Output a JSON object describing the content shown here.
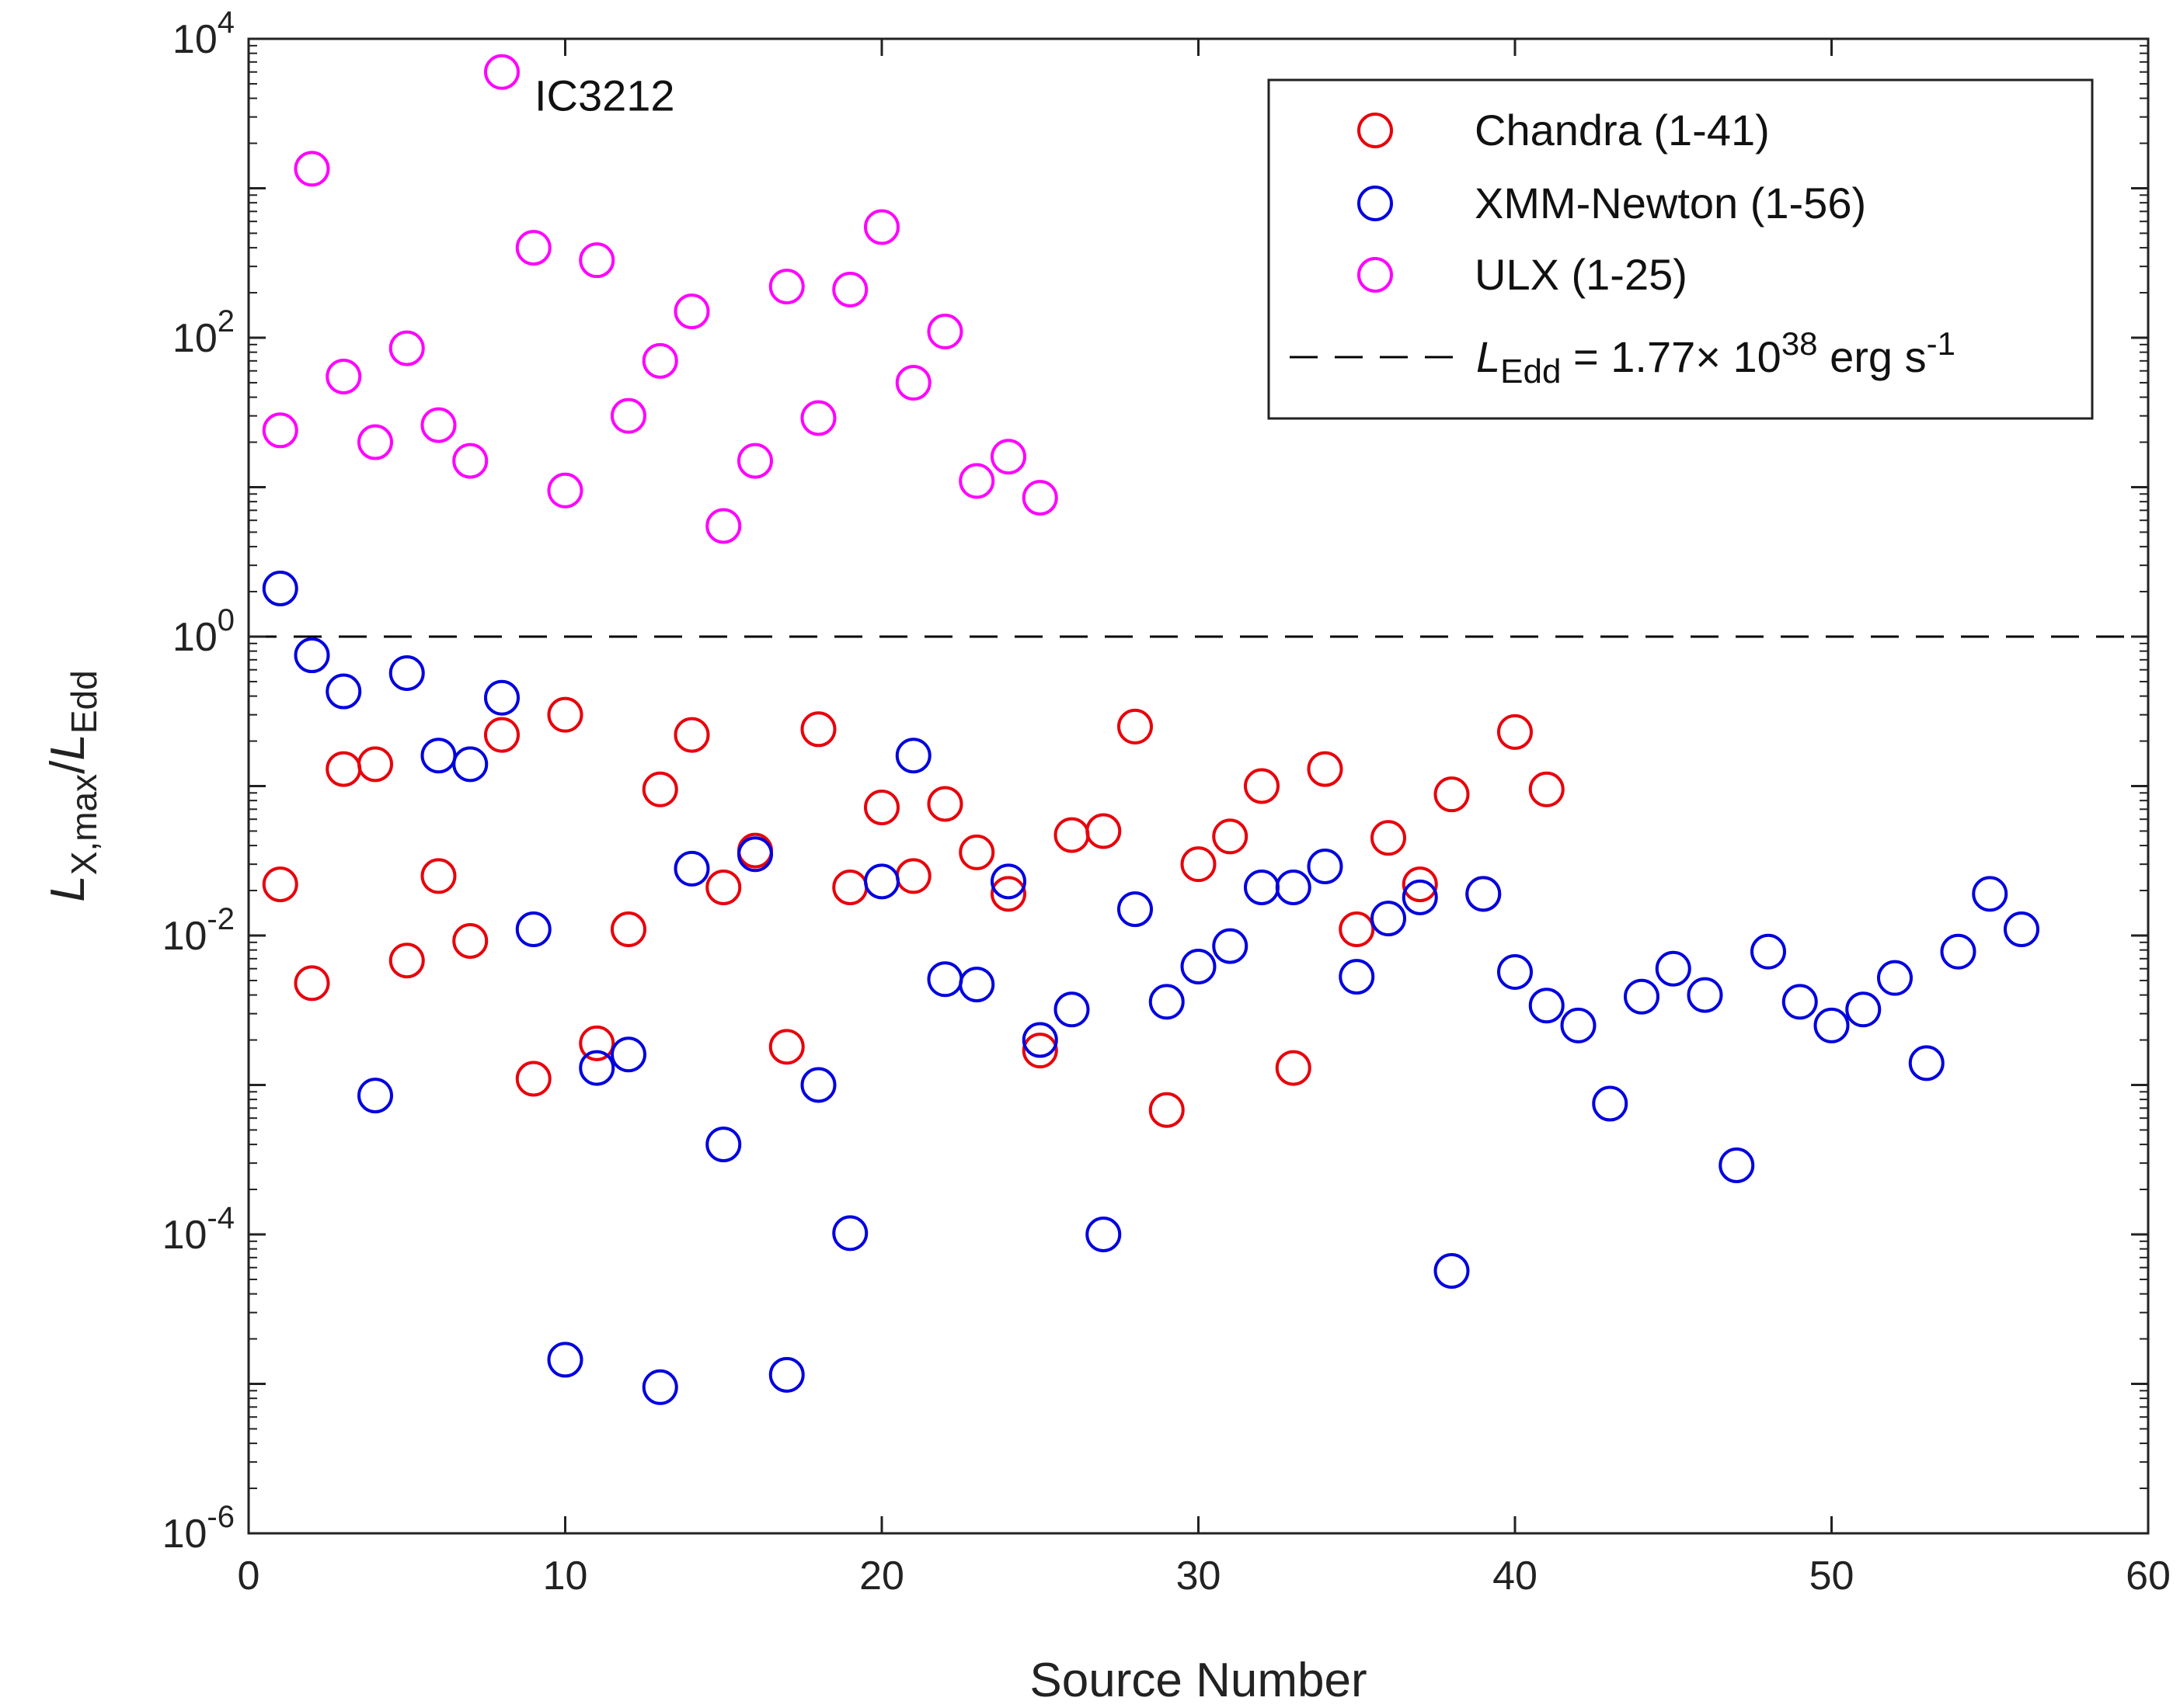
{
  "chart_data": {
    "type": "scatter",
    "xlabel": "Source Number",
    "ylabel": {
      "main": "L",
      "main_sub": "X,max",
      "slash": "/",
      "denom": "L",
      "denom_sub": "Edd"
    },
    "xlim": [
      0,
      60
    ],
    "ylim_log10": [
      -6,
      4
    ],
    "yscale": "log",
    "grid": false,
    "x_ticks": [
      "0",
      "10",
      "20",
      "30",
      "40",
      "50",
      "60"
    ],
    "y_ticks": [
      {
        "base": "10",
        "exp": "4"
      },
      {
        "base": "10",
        "exp": "2"
      },
      {
        "base": "10",
        "exp": "0"
      },
      {
        "base": "10",
        "exp": "-2"
      },
      {
        "base": "10",
        "exp": "-4"
      },
      {
        "base": "10",
        "exp": "-6"
      }
    ],
    "reference_line": {
      "y": 1,
      "style": "dashed",
      "color": "#000000"
    },
    "annotation": {
      "text": "IC3212",
      "x": 8,
      "y": 6000
    },
    "legend": {
      "position": "top-right",
      "entries": [
        {
          "label": "Chandra (1-41)",
          "color": "#e8000b"
        },
        {
          "label": "XMM-Newton (1-56)",
          "color": "#0000e0"
        },
        {
          "label": "ULX (1-25)",
          "color": "#ff00ff"
        },
        {
          "label_prefix": "L",
          "label_sub": "Edd",
          "label_mid": " = 1.77× 10",
          "label_exp": "38",
          "label_unit": " erg s",
          "label_unit_exp": "-1",
          "color": "#000000",
          "style": "dashed"
        }
      ]
    },
    "series": [
      {
        "name": "Chandra (1-41)",
        "color": "#e8000b",
        "x": [
          1,
          2,
          3,
          4,
          5,
          6,
          7,
          8,
          9,
          10,
          11,
          12,
          13,
          14,
          15,
          16,
          17,
          18,
          19,
          20,
          21,
          22,
          23,
          24,
          25,
          26,
          27,
          28,
          29,
          30,
          31,
          32,
          33,
          34,
          35,
          36,
          37,
          38,
          39,
          40,
          41
        ],
        "y": [
          0.022,
          0.0048,
          0.13,
          0.14,
          0.0068,
          0.025,
          0.0092,
          0.22,
          0.0011,
          0.3,
          0.0019,
          0.011,
          0.095,
          0.22,
          0.021,
          0.037,
          0.0018,
          0.24,
          0.021,
          0.072,
          0.025,
          0.076,
          0.036,
          0.019,
          0.0017,
          0.047,
          0.05,
          0.25,
          0.00068,
          0.03,
          0.046,
          0.1,
          0.0013,
          0.13,
          0.011,
          0.045,
          0.022,
          0.088,
          0.019,
          0.23,
          0.095
        ]
      },
      {
        "name": "XMM-Newton (1-56)",
        "color": "#0000e0",
        "x": [
          1,
          2,
          3,
          4,
          5,
          6,
          7,
          8,
          9,
          10,
          11,
          12,
          13,
          14,
          15,
          16,
          17,
          18,
          19,
          20,
          21,
          22,
          23,
          24,
          25,
          26,
          27,
          28,
          29,
          30,
          31,
          32,
          33,
          34,
          35,
          36,
          37,
          38,
          39,
          40,
          41,
          42,
          43,
          44,
          45,
          46,
          47,
          48,
          49,
          50,
          51,
          52,
          53,
          54,
          55,
          56
        ],
        "y": [
          2.1,
          0.75,
          0.43,
          0.00085,
          0.57,
          0.16,
          0.14,
          0.39,
          0.011,
          1.45e-05,
          0.0013,
          0.0016,
          9.5e-06,
          0.028,
          0.0004,
          0.035,
          1.15e-05,
          0.001,
          0.000102,
          0.023,
          0.16,
          0.0051,
          0.0047,
          0.023,
          0.002,
          0.0032,
          0.0001,
          0.015,
          0.0036,
          0.0062,
          0.0085,
          0.021,
          0.021,
          0.029,
          0.0053,
          0.013,
          0.018,
          5.7e-05,
          0.019,
          0.0057,
          0.0034,
          0.0025,
          0.00075,
          0.0039,
          0.006,
          0.004,
          0.00029,
          0.0078,
          0.0036,
          0.0025,
          0.0032,
          0.0052,
          0.0014,
          0.0078,
          0.019,
          0.011
        ]
      },
      {
        "name": "ULX (1-25)",
        "color": "#ff00ff",
        "x": [
          1,
          2,
          3,
          4,
          5,
          6,
          7,
          8,
          9,
          10,
          11,
          12,
          13,
          14,
          15,
          16,
          17,
          18,
          19,
          20,
          21,
          22,
          23,
          24,
          25
        ],
        "y": [
          24,
          1350,
          55,
          20,
          85,
          26,
          15,
          6000,
          400,
          9.5,
          330,
          30,
          70,
          150,
          5.5,
          15,
          220,
          29,
          210,
          550,
          50,
          110,
          11,
          16,
          8.5
        ]
      }
    ]
  }
}
